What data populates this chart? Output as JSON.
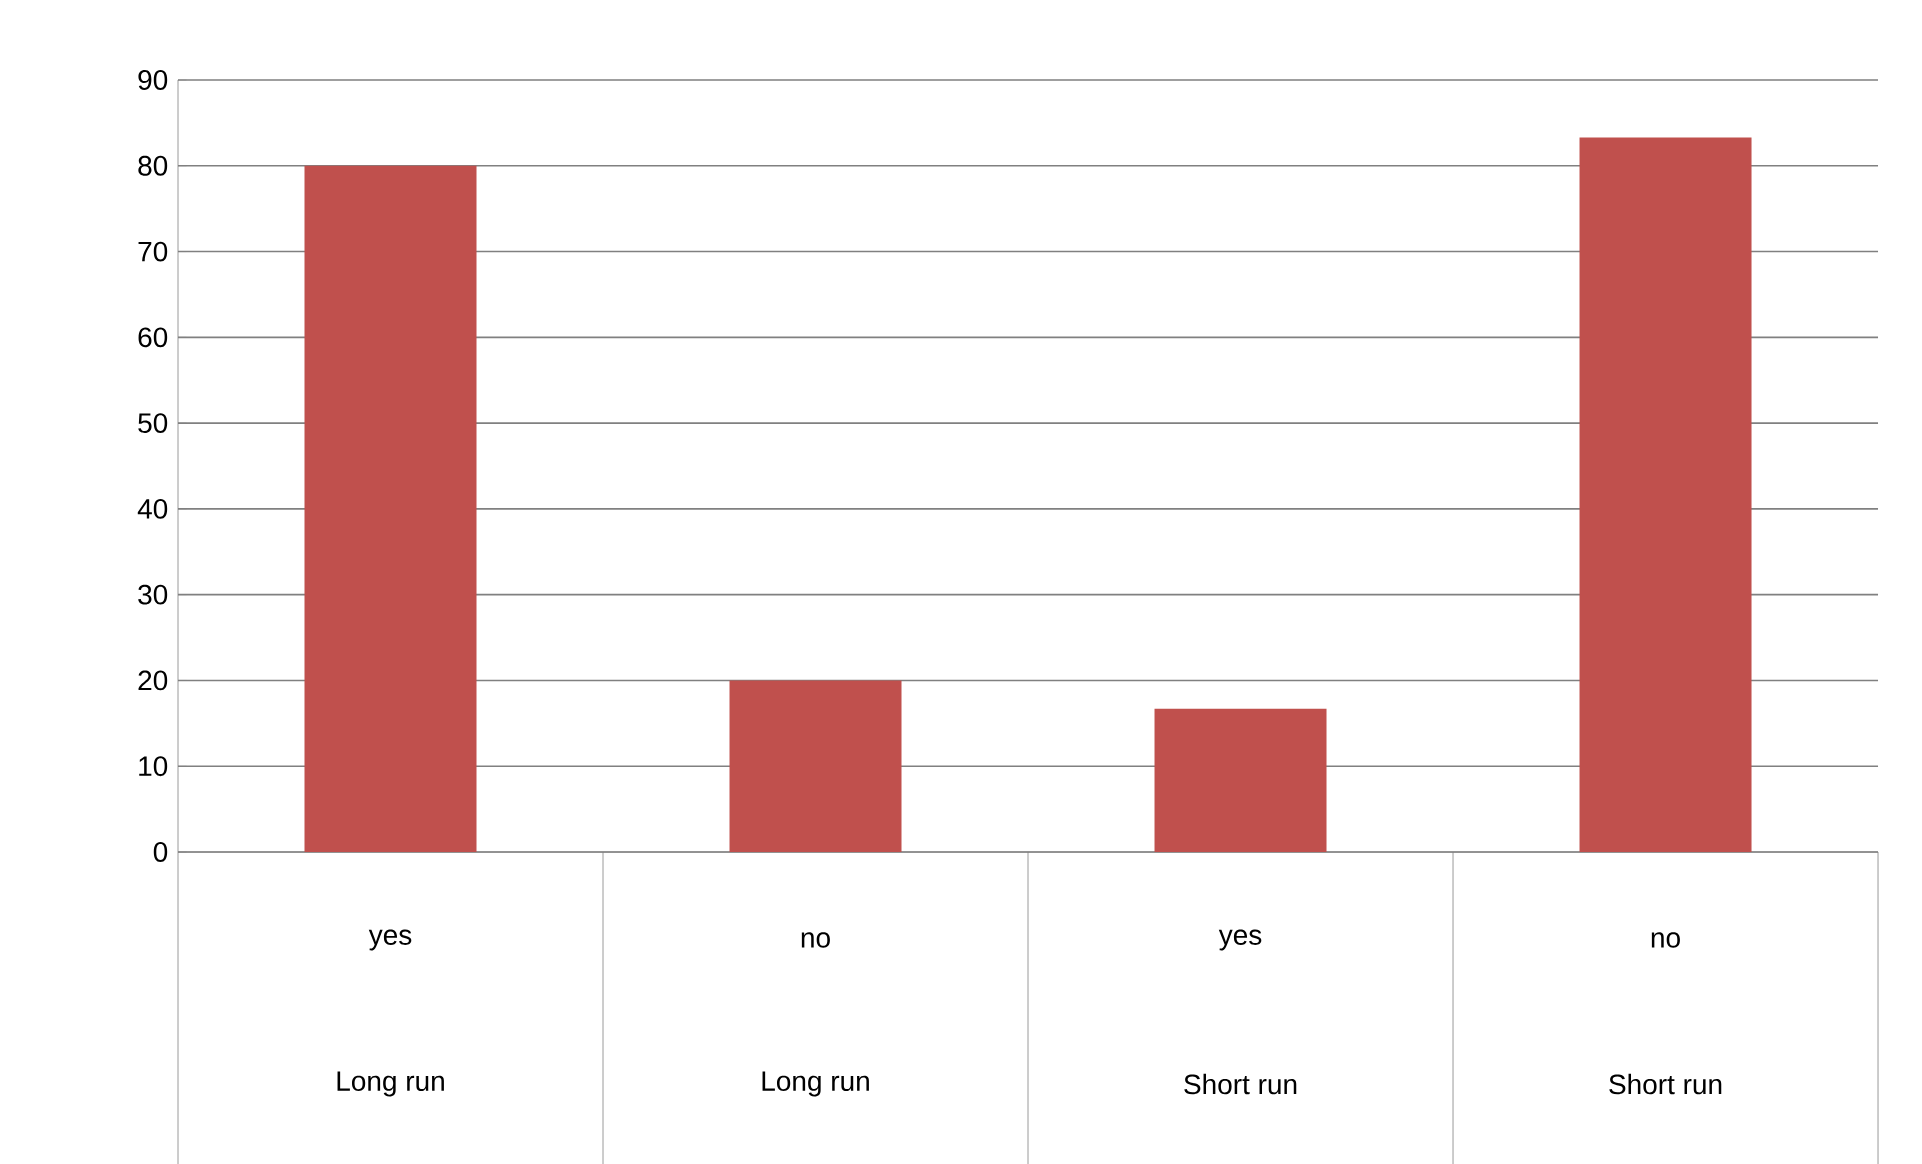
{
  "chart_data": {
    "type": "bar",
    "categories": [
      "yes",
      "no",
      "yes",
      "no"
    ],
    "values": [
      80,
      20,
      16.7,
      83.3
    ],
    "color": "#c0504d",
    "annotations": [
      "Long run",
      "Long run",
      "Short run",
      "Short run"
    ],
    "ylim": [
      0,
      90
    ],
    "yticks": [
      0,
      10,
      20,
      30,
      40,
      50,
      60,
      70,
      80,
      90
    ],
    "grid": "y"
  }
}
